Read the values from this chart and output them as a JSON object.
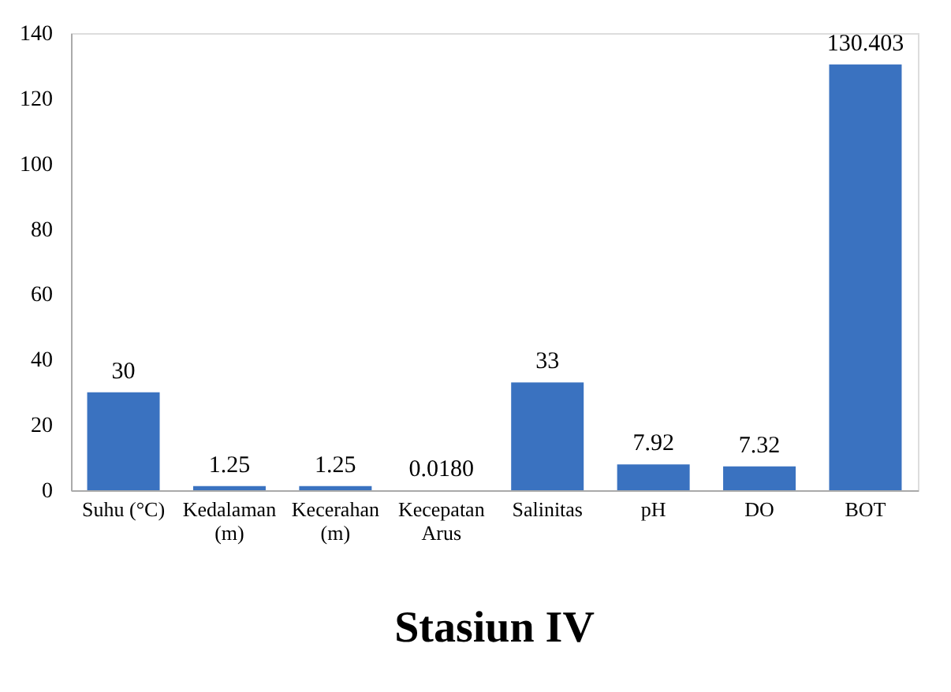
{
  "chart_data": {
    "type": "bar",
    "title": "Stasiun IV",
    "categories": [
      "Suhu (°C)",
      "Kedalaman (m)",
      "Kecerahan (m)",
      "Kecepatan Arus",
      "Salinitas",
      "pH",
      "DO",
      "BOT"
    ],
    "values": [
      30,
      1.25,
      1.25,
      0.018,
      33,
      7.92,
      7.32,
      130.403
    ],
    "value_labels": [
      "30",
      "1.25",
      "1.25",
      "0.0180",
      "33",
      "7.92",
      "7.32",
      "130.403"
    ],
    "color": "#3a72c0",
    "ylim": [
      0,
      140
    ],
    "yticks": [
      0,
      20,
      40,
      60,
      80,
      100,
      120,
      140
    ],
    "grid": false
  }
}
